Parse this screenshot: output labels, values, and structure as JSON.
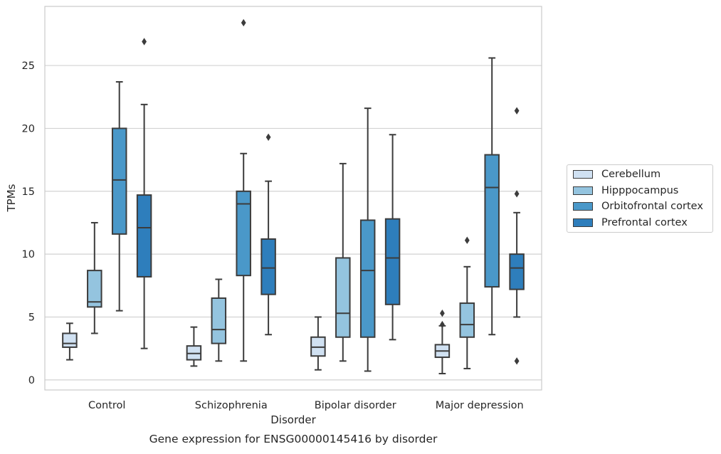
{
  "chart_data": {
    "type": "box",
    "title": "Gene expression for ENSG00000145416 by disorder",
    "xlabel": "Disorder",
    "ylabel": "TPMs",
    "categories": [
      "Control",
      "Schizophrenia",
      "Bipolar disorder",
      "Major depression"
    ],
    "ylim": [
      -0.8,
      29.7
    ],
    "yticks": [
      0,
      5,
      10,
      15,
      20,
      25
    ],
    "grid": "horizontal",
    "legend_position": "center-right outside",
    "series": [
      {
        "name": "Cerebellum",
        "color": "#d0e1f2",
        "boxes": [
          {
            "whislo": 1.6,
            "q1": 2.6,
            "med": 2.9,
            "q3": 3.7,
            "whishi": 4.5,
            "fliers": []
          },
          {
            "whislo": 1.1,
            "q1": 1.6,
            "med": 2.1,
            "q3": 2.7,
            "whishi": 4.2,
            "fliers": []
          },
          {
            "whislo": 0.8,
            "q1": 1.9,
            "med": 2.6,
            "q3": 3.4,
            "whishi": 5.0,
            "fliers": []
          },
          {
            "whislo": 0.5,
            "q1": 1.8,
            "med": 2.3,
            "q3": 2.8,
            "whishi": 4.3,
            "fliers": [
              4.4,
              5.3
            ]
          }
        ]
      },
      {
        "name": "Hipppocampus",
        "color": "#94c4df",
        "boxes": [
          {
            "whislo": 3.7,
            "q1": 5.8,
            "med": 6.2,
            "q3": 8.7,
            "whishi": 12.5,
            "fliers": []
          },
          {
            "whislo": 1.5,
            "q1": 2.9,
            "med": 4.0,
            "q3": 6.5,
            "whishi": 8.0,
            "fliers": []
          },
          {
            "whislo": 1.5,
            "q1": 3.4,
            "med": 5.3,
            "q3": 9.7,
            "whishi": 17.2,
            "fliers": []
          },
          {
            "whislo": 0.9,
            "q1": 3.4,
            "med": 4.4,
            "q3": 6.1,
            "whishi": 9.0,
            "fliers": [
              11.1
            ]
          }
        ]
      },
      {
        "name": "Orbitofrontal cortex",
        "color": "#4a98c9",
        "boxes": [
          {
            "whislo": 5.5,
            "q1": 11.6,
            "med": 15.9,
            "q3": 20.0,
            "whishi": 23.7,
            "fliers": []
          },
          {
            "whislo": 1.5,
            "q1": 8.3,
            "med": 14.0,
            "q3": 15.0,
            "whishi": 18.0,
            "fliers": [
              28.4
            ]
          },
          {
            "whislo": 0.7,
            "q1": 3.4,
            "med": 8.7,
            "q3": 12.7,
            "whishi": 21.6,
            "fliers": []
          },
          {
            "whislo": 3.6,
            "q1": 7.4,
            "med": 15.3,
            "q3": 17.9,
            "whishi": 25.6,
            "fliers": []
          }
        ]
      },
      {
        "name": "Prefrontal cortex",
        "color": "#2e7ebc",
        "boxes": [
          {
            "whislo": 2.5,
            "q1": 8.2,
            "med": 12.1,
            "q3": 14.7,
            "whishi": 21.9,
            "fliers": [
              26.9
            ]
          },
          {
            "whislo": 3.6,
            "q1": 6.8,
            "med": 8.9,
            "q3": 11.2,
            "whishi": 15.8,
            "fliers": [
              19.3
            ]
          },
          {
            "whislo": 3.2,
            "q1": 6.0,
            "med": 9.7,
            "q3": 12.8,
            "whishi": 19.5,
            "fliers": []
          },
          {
            "whislo": 5.0,
            "q1": 7.2,
            "med": 8.9,
            "q3": 10.0,
            "whishi": 13.3,
            "fliers": [
              1.5,
              14.8,
              21.4
            ]
          }
        ]
      }
    ]
  }
}
